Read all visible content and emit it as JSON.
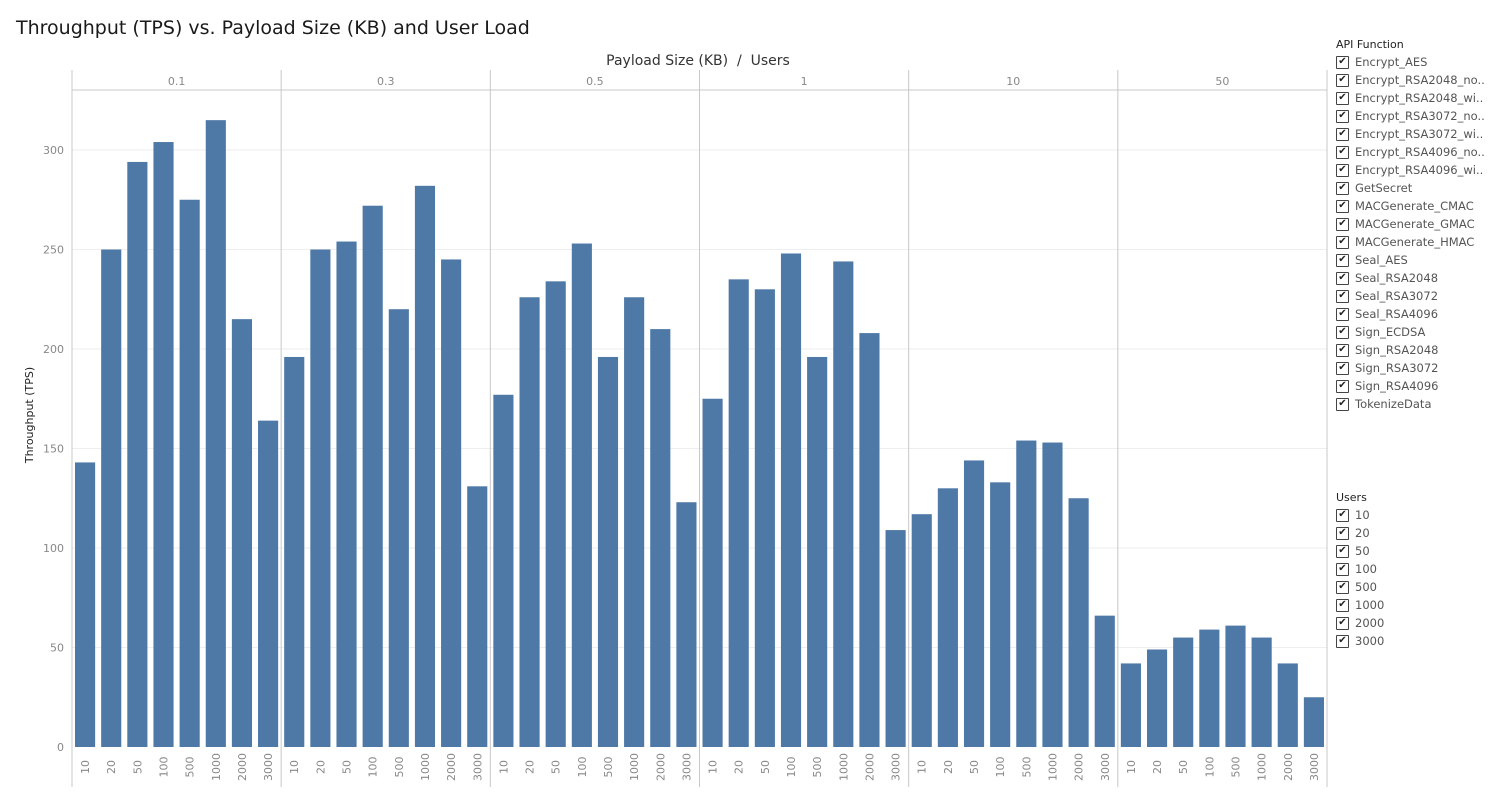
{
  "colors": {
    "bar": "#4e79a7",
    "grid": "#eeeeee",
    "rule": "#c8c8c8",
    "tick_text": "#888888"
  },
  "legends": {
    "api": {
      "title": "API Function",
      "items": [
        "Encrypt_AES",
        "Encrypt_RSA2048_no..",
        "Encrypt_RSA2048_wi..",
        "Encrypt_RSA3072_no..",
        "Encrypt_RSA3072_wi..",
        "Encrypt_RSA4096_no..",
        "Encrypt_RSA4096_wi..",
        "GetSecret",
        "MACGenerate_CMAC",
        "MACGenerate_GMAC",
        "MACGenerate_HMAC",
        "Seal_AES",
        "Seal_RSA2048",
        "Seal_RSA3072",
        "Seal_RSA4096",
        "Sign_ECDSA",
        "Sign_RSA2048",
        "Sign_RSA3072",
        "Sign_RSA4096",
        "TokenizeData"
      ]
    },
    "users": {
      "title": "Users",
      "items": [
        "10",
        "20",
        "50",
        "100",
        "500",
        "1000",
        "2000",
        "3000"
      ]
    },
    "check_glyph": "✔"
  },
  "chart_data": {
    "type": "bar",
    "title": "Throughput (TPS) vs. Payload Size (KB) and User Load",
    "header_label": "Payload Size (KB)  /  Users",
    "ylabel": "Throughput (TPS)",
    "ylim": [
      0,
      340
    ],
    "yticks": [
      0,
      50,
      100,
      150,
      200,
      250,
      300
    ],
    "grid": true,
    "legend_position": "right",
    "categories": [
      "10",
      "20",
      "50",
      "100",
      "500",
      "1000",
      "2000",
      "3000"
    ],
    "panels": [
      {
        "label": "0.1",
        "values": [
          143,
          250,
          294,
          304,
          275,
          315,
          215,
          164
        ]
      },
      {
        "label": "0.3",
        "values": [
          196,
          250,
          254,
          272,
          220,
          282,
          245,
          131
        ]
      },
      {
        "label": "0.5",
        "values": [
          177,
          226,
          234,
          253,
          196,
          226,
          210,
          123
        ]
      },
      {
        "label": "1",
        "values": [
          175,
          235,
          230,
          248,
          196,
          244,
          208,
          109
        ]
      },
      {
        "label": "10",
        "values": [
          117,
          130,
          144,
          133,
          154,
          153,
          125,
          66
        ]
      },
      {
        "label": "50",
        "values": [
          42,
          49,
          55,
          59,
          61,
          55,
          42,
          25
        ]
      }
    ]
  }
}
